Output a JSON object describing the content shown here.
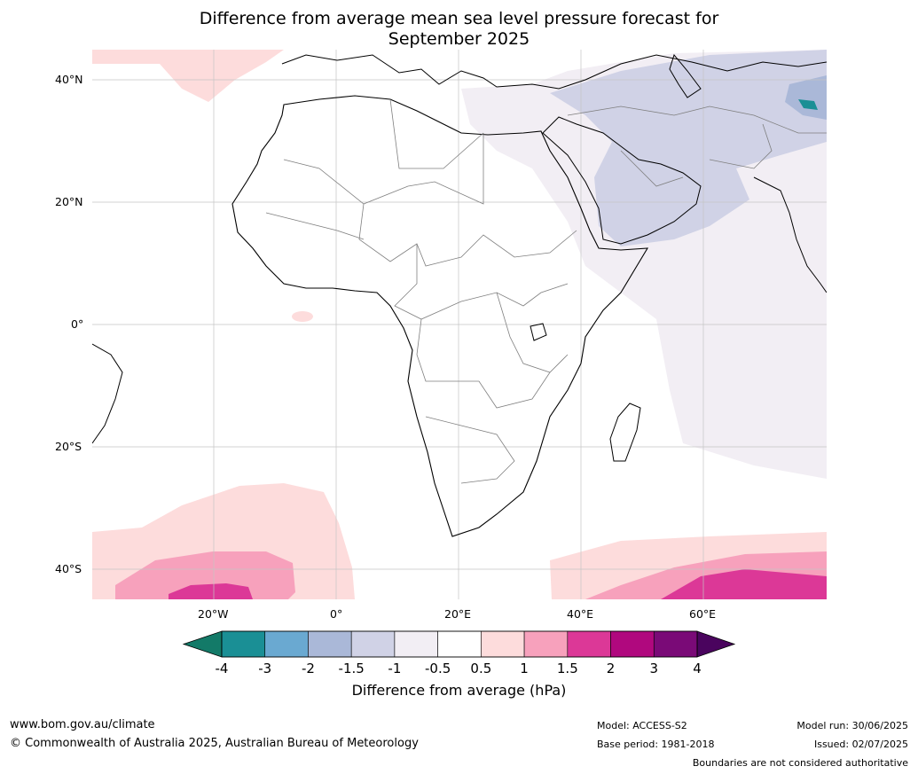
{
  "title_line1": "Difference from average mean sea level pressure forecast for",
  "title_line2": "September 2025",
  "lat_labels": [
    "40°N",
    "20°N",
    "0°",
    "20°S",
    "40°S"
  ],
  "lon_labels": [
    "20°W",
    "0°",
    "20°E",
    "40°E",
    "60°E"
  ],
  "colorbar": {
    "ticks": [
      "-4",
      "-3",
      "-2",
      "-1.5",
      "-1",
      "-0.5",
      "0.5",
      "1",
      "1.5",
      "2",
      "3",
      "4"
    ],
    "colors": [
      "#1a8f95",
      "#6aa9d1",
      "#aab8d8",
      "#d0d2e6",
      "#f2eef4",
      "#ffffff",
      "#fddcdc",
      "#f7a1bc",
      "#dc3897",
      "#b0087e",
      "#7a0a77"
    ],
    "low_extend": "#137a68",
    "high_extend": "#4a045e",
    "label": "Difference from average (hPa)"
  },
  "footer": {
    "url": "www.bom.gov.au/climate",
    "copyright": "© Commonwealth of Australia 2025, Australian Bureau of Meteorology",
    "model": "Model: ACCESS-S2",
    "base_period": "Base period: 1981-2018",
    "model_run": "Model run: 30/06/2025",
    "issued": "Issued: 02/07/2025",
    "disclaimer": "Boundaries are not considered authoritative"
  }
}
